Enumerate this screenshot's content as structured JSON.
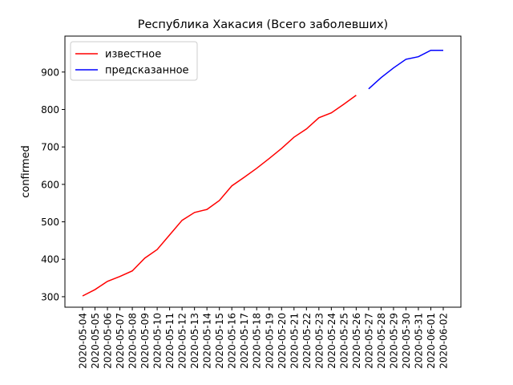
{
  "chart_data": {
    "type": "line",
    "title": "Республика Хакасия (Всего заболевших)",
    "y_label": "confirmed",
    "categories": [
      "2020-05-04",
      "2020-05-05",
      "2020-05-06",
      "2020-05-07",
      "2020-05-08",
      "2020-05-09",
      "2020-05-10",
      "2020-05-11",
      "2020-05-12",
      "2020-05-13",
      "2020-05-14",
      "2020-05-15",
      "2020-05-16",
      "2020-05-17",
      "2020-05-18",
      "2020-05-19",
      "2020-05-20",
      "2020-05-21",
      "2020-05-22",
      "2020-05-23",
      "2020-05-24",
      "2020-05-25",
      "2020-05-26",
      "2020-05-27",
      "2020-05-28",
      "2020-05-29",
      "2020-05-30",
      "2020-05-31",
      "2020-06-01",
      "2020-06-02"
    ],
    "series": [
      {
        "name": "известное",
        "color": "#ff0000",
        "values": [
          302,
          319,
          341,
          354,
          369,
          403,
          426,
          465,
          504,
          525,
          533,
          557,
          596,
          619,
          643,
          669,
          696,
          726,
          748,
          778,
          791,
          814,
          838,
          null,
          null,
          null,
          null,
          null,
          null,
          null
        ]
      },
      {
        "name": "предсказанное",
        "color": "#0000ff",
        "values": [
          null,
          null,
          null,
          null,
          null,
          null,
          null,
          null,
          null,
          null,
          null,
          null,
          null,
          null,
          null,
          null,
          null,
          null,
          null,
          null,
          null,
          null,
          null,
          855,
          885,
          911,
          934,
          941,
          958,
          958
        ]
      }
    ],
    "ylim": [
      272,
      996
    ],
    "yticks": [
      300,
      400,
      500,
      600,
      700,
      800,
      900
    ],
    "legend": "upper left",
    "grid": false
  }
}
